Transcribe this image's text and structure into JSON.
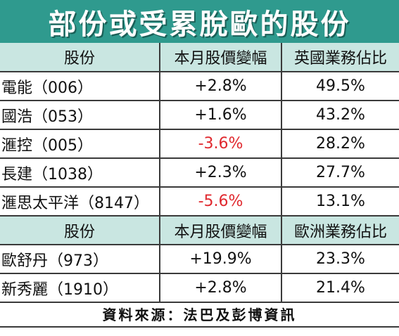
{
  "title": "部份或受累脫歐的股份",
  "section1": {
    "headers": [
      "股份",
      "本月股價變幅",
      "英國業務佔比"
    ],
    "rows": [
      {
        "name": "電能（006）",
        "change": "+2.8%",
        "share": "49.5%",
        "negative": false
      },
      {
        "name": "國浩（053）",
        "change": "+1.6%",
        "share": "43.2%",
        "negative": false
      },
      {
        "name": "滙控（005）",
        "change": "-3.6%",
        "share": "28.2%",
        "negative": true
      },
      {
        "name": "長建（1038）",
        "change": "+2.3%",
        "share": "27.7%",
        "negative": false
      },
      {
        "name": "滙思太平洋（8147）",
        "change": "-5.6%",
        "share": "13.1%",
        "negative": true
      }
    ]
  },
  "section2": {
    "headers": [
      "股份",
      "本月股價變幅",
      "歐洲業務佔比"
    ],
    "rows": [
      {
        "name": "歐舒丹（973）",
        "change": "+19.9%",
        "share": "23.3%",
        "negative": false
      },
      {
        "name": "新秀麗（1910）",
        "change": "+2.8%",
        "share": "21.4%",
        "negative": false
      }
    ]
  },
  "source": "資料來源：法巴及彭博資訊",
  "colors": {
    "title_bg": "#2f9a8e",
    "header_bg": "#c9e6e1",
    "negative": "#e0282e"
  }
}
